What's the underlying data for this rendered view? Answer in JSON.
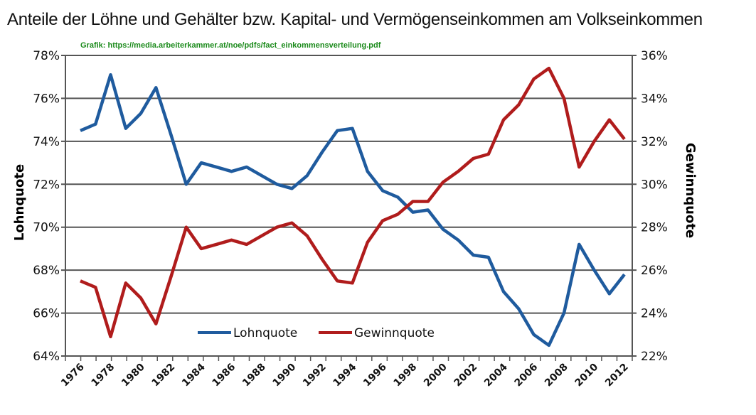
{
  "title": "Anteile der Löhne und Gehälter bzw. Kapital- und Vermögenseinkommen am Volkseinkommen",
  "source": "Grafik: https://media.arbeiterkammer.at/noe/pdfs/fact_einkommensverteilung.pdf",
  "chart_data": {
    "type": "line",
    "x": [
      1976,
      1977,
      1978,
      1979,
      1980,
      1981,
      1982,
      1983,
      1984,
      1985,
      1986,
      1987,
      1988,
      1989,
      1990,
      1991,
      1992,
      1993,
      1994,
      1995,
      1996,
      1997,
      1998,
      1999,
      2000,
      2001,
      2002,
      2003,
      2004,
      2005,
      2006,
      2007,
      2008,
      2009,
      2010,
      2011,
      2012
    ],
    "xtick_labels": [
      "1976",
      "1978",
      "1980",
      "1982",
      "1984",
      "1986",
      "1988",
      "1990",
      "1992",
      "1994",
      "1996",
      "1998",
      "2000",
      "2002",
      "2004",
      "2006",
      "2008",
      "2010",
      "2012"
    ],
    "ylabel_left": "Lohnquote",
    "ylabel_right": "Gewinnquote",
    "ylim_left": [
      64,
      78
    ],
    "ylim_right": [
      22,
      36
    ],
    "yticks_left": [
      "64%",
      "66%",
      "68%",
      "70%",
      "72%",
      "74%",
      "76%",
      "78%"
    ],
    "yticks_right": [
      "22%",
      "24%",
      "26%",
      "28%",
      "30%",
      "32%",
      "34%",
      "36%"
    ],
    "grid": true,
    "legend_placement": "bottom-center",
    "series": [
      {
        "name": "Lohnquote",
        "axis": "left",
        "color": "#1f5b9e",
        "values": [
          74.5,
          74.8,
          77.1,
          74.6,
          75.3,
          76.5,
          74.3,
          72.0,
          73.0,
          72.8,
          72.6,
          72.8,
          72.4,
          72.0,
          71.8,
          72.4,
          73.5,
          74.5,
          74.6,
          72.6,
          71.7,
          71.4,
          70.7,
          70.8,
          69.9,
          69.4,
          68.7,
          68.6,
          67.0,
          66.2,
          65.0,
          64.5,
          66.0,
          69.2,
          68.0,
          66.9,
          67.8
        ]
      },
      {
        "name": "Gewinnquote",
        "axis": "right",
        "color": "#b01c1c",
        "values": [
          25.5,
          25.2,
          22.9,
          25.4,
          24.7,
          23.5,
          25.7,
          28.0,
          27.0,
          27.2,
          27.4,
          27.2,
          27.6,
          28.0,
          28.2,
          27.6,
          26.5,
          25.5,
          25.4,
          27.3,
          28.3,
          28.6,
          29.2,
          29.2,
          30.1,
          30.6,
          31.2,
          31.4,
          33.0,
          33.7,
          34.9,
          35.4,
          34.0,
          30.8,
          32.0,
          33.0,
          32.1
        ]
      }
    ]
  }
}
